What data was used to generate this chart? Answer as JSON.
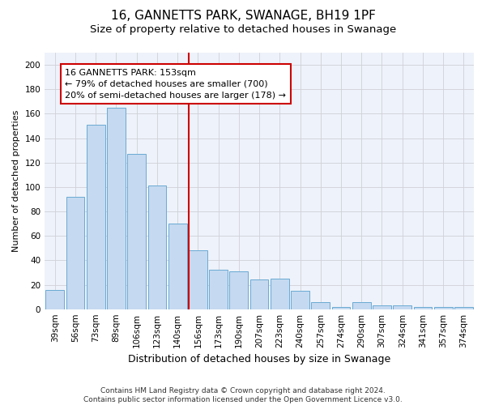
{
  "title1": "16, GANNETTS PARK, SWANAGE, BH19 1PF",
  "title2": "Size of property relative to detached houses in Swanage",
  "xlabel": "Distribution of detached houses by size in Swanage",
  "ylabel": "Number of detached properties",
  "categories": [
    "39sqm",
    "56sqm",
    "73sqm",
    "89sqm",
    "106sqm",
    "123sqm",
    "140sqm",
    "156sqm",
    "173sqm",
    "190sqm",
    "207sqm",
    "223sqm",
    "240sqm",
    "257sqm",
    "274sqm",
    "290sqm",
    "307sqm",
    "324sqm",
    "341sqm",
    "357sqm",
    "374sqm"
  ],
  "values": [
    16,
    92,
    151,
    165,
    127,
    101,
    70,
    48,
    32,
    31,
    24,
    25,
    15,
    6,
    2,
    6,
    3,
    3,
    2,
    2,
    2
  ],
  "bar_color": "#c5d9f0",
  "bar_edge_color": "#6aaad4",
  "vline_index": 7,
  "annotation_text_line1": "16 GANNETTS PARK: 153sqm",
  "annotation_text_line2": "← 79% of detached houses are smaller (700)",
  "annotation_text_line3": "20% of semi-detached houses are larger (178) →",
  "annotation_box_facecolor": "#ffffff",
  "annotation_box_edgecolor": "#cc0000",
  "vline_color": "#cc0000",
  "ylim": [
    0,
    210
  ],
  "yticks": [
    0,
    20,
    40,
    60,
    80,
    100,
    120,
    140,
    160,
    180,
    200
  ],
  "grid_color": "#d0d0d8",
  "background_color": "#eef2fa",
  "footer1": "Contains HM Land Registry data © Crown copyright and database right 2024.",
  "footer2": "Contains public sector information licensed under the Open Government Licence v3.0.",
  "title1_fontsize": 11,
  "title2_fontsize": 9.5,
  "xlabel_fontsize": 9,
  "ylabel_fontsize": 8,
  "tick_fontsize": 7.5,
  "annotation_fontsize": 8,
  "footer_fontsize": 6.5
}
